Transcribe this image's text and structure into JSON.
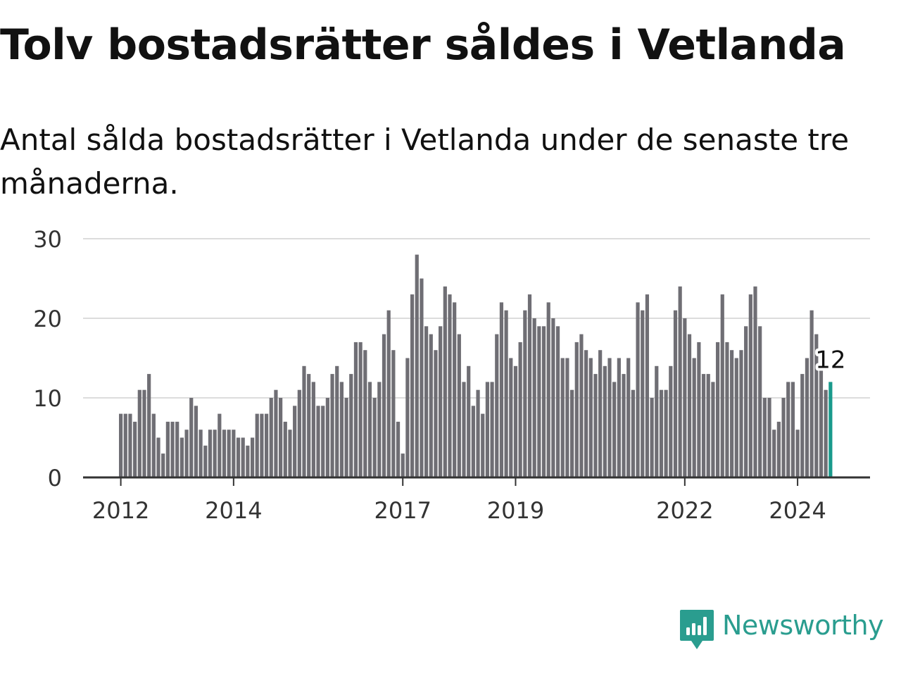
{
  "title": "Tolv bostadsrätter såldes i Vetlanda",
  "subtitle": "Antal sålda bostadsrätter i Vetlanda under de senaste tre månaderna.",
  "logo": {
    "text": "Newsworthy",
    "icon": "newsworthy-bar-chart-icon",
    "color": "#2a9d8f"
  },
  "chart_data": {
    "type": "bar",
    "ylim": [
      0,
      30
    ],
    "yticks": [
      "0",
      "10",
      "20",
      "30"
    ],
    "xtick_labels": [
      "2012",
      "2014",
      "2017",
      "2019",
      "2022",
      "2024"
    ],
    "grid": true,
    "bar_color": "#6f6e74",
    "highlight_color": "#1a9a8c",
    "highlight_label": "12",
    "start": "2012-01",
    "values": [
      8,
      8,
      8,
      7,
      11,
      11,
      13,
      8,
      5,
      3,
      7,
      7,
      7,
      5,
      6,
      10,
      9,
      6,
      4,
      6,
      6,
      8,
      6,
      6,
      6,
      5,
      5,
      4,
      5,
      8,
      8,
      8,
      10,
      11,
      10,
      7,
      6,
      9,
      11,
      14,
      13,
      12,
      9,
      9,
      10,
      13,
      14,
      12,
      10,
      13,
      17,
      17,
      16,
      12,
      10,
      12,
      18,
      21,
      16,
      7,
      3,
      15,
      23,
      28,
      25,
      19,
      18,
      16,
      19,
      24,
      23,
      22,
      18,
      12,
      14,
      9,
      11,
      8,
      12,
      12,
      18,
      22,
      21,
      15,
      14,
      17,
      21,
      23,
      20,
      19,
      19,
      22,
      20,
      19,
      15,
      15,
      11,
      17,
      18,
      16,
      15,
      13,
      16,
      14,
      15,
      12,
      15,
      13,
      15,
      11,
      22,
      21,
      23,
      10,
      14,
      11,
      11,
      14,
      21,
      24,
      20,
      18,
      15,
      17,
      13,
      13,
      12,
      17,
      23,
      17,
      16,
      15,
      16,
      19,
      23,
      24,
      19,
      10,
      10,
      6,
      7,
      10,
      12,
      12,
      6,
      13,
      15,
      21,
      18,
      14,
      11,
      12
    ]
  }
}
